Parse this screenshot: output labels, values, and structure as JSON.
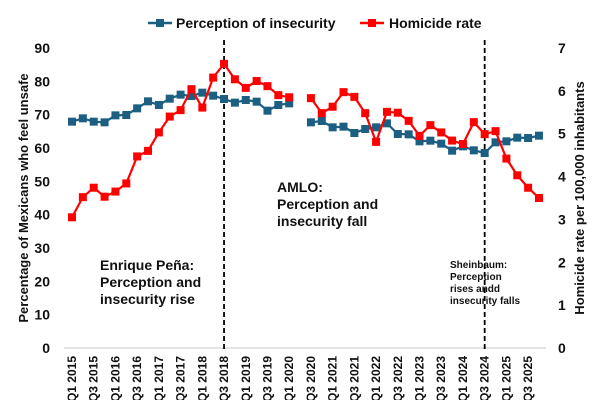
{
  "chart_data": {
    "type": "line",
    "title": "",
    "xlabel": "",
    "ylabel": "Percentage of Mexicans who feel unsafe",
    "ylabel_right": "Homicide rate per 100,000 inhabitants",
    "ylim": [
      0,
      90
    ],
    "ylim_right": [
      0,
      7
    ],
    "yticks": [
      0,
      10,
      20,
      30,
      40,
      50,
      60,
      70,
      80,
      90
    ],
    "yticks_right": [
      0,
      1,
      2,
      3,
      4,
      5,
      6,
      7
    ],
    "grid": false,
    "legend_position": "top-center",
    "x": [
      "Q1 2015",
      "Q2 2015",
      "Q3 2015",
      "Q4 2015",
      "Q1 2016",
      "Q2 2016",
      "Q3 2016",
      "Q4 2016",
      "Q1 2017",
      "Q2 2017",
      "Q3 2017",
      "Q4 2017",
      "Q1 2018",
      "Q2 2018",
      "Q3 2018",
      "Q4 2018",
      "Q1 2019",
      "Q2 2019",
      "Q3 2019",
      "Q4 2019",
      "Q1 2020",
      "Q2 2020",
      "Q3 2020",
      "Q4 2020",
      "Q1 2021",
      "Q2 2021",
      "Q3 2021",
      "Q4 2021",
      "Q1 2022",
      "Q2 2022",
      "Q3 2022",
      "Q4 2022",
      "Q1 2023",
      "Q2 2023",
      "Q3 2023",
      "Q4 2023",
      "Q1 2024",
      "Q2 2024",
      "Q3 2024",
      "Q4 2024",
      "Q1 2025",
      "Q2 2025",
      "Q3 2025",
      "Q4 2025"
    ],
    "xtick_labels": [
      "Q1 2015",
      "Q3 2015",
      "Q1 2016",
      "Q3 2016",
      "Q1 2017",
      "Q3 2017",
      "Q1 2018",
      "Q3 2018",
      "Q1 2019",
      "Q3 2019",
      "Q1 2020",
      "Q3 2020",
      "Q1 2021",
      "Q3 2021",
      "Q1 2022",
      "Q3 2022",
      "Q1 2023",
      "Q3 2023",
      "Q1 2024",
      "Q3 2024",
      "Q1 2025",
      "Q3 2025"
    ],
    "series": [
      {
        "name": "Perception of insecurity",
        "axis": "left",
        "color": "#1c5f82",
        "values": [
          67.9,
          68.9,
          67.9,
          67.7,
          69.8,
          69.9,
          71.9,
          74.0,
          72.9,
          74.8,
          76.0,
          75.6,
          76.6,
          75.7,
          74.7,
          73.6,
          74.4,
          73.9,
          71.2,
          72.9,
          73.4,
          null,
          67.7,
          68.1,
          66.2,
          66.4,
          64.5,
          65.7,
          66.2,
          67.4,
          64.2,
          64.1,
          62.0,
          62.2,
          61.3,
          59.2,
          60.5,
          59.3,
          58.5,
          61.7,
          62.0,
          63.1,
          63.0,
          63.7
        ]
      },
      {
        "name": "Homicide rate",
        "axis": "right",
        "color": "#ff0000",
        "values": [
          3.05,
          3.52,
          3.74,
          3.53,
          3.65,
          3.84,
          4.47,
          4.6,
          5.03,
          5.4,
          5.55,
          6.04,
          5.61,
          6.31,
          6.63,
          6.27,
          6.07,
          6.23,
          6.11,
          5.9,
          5.85,
          null,
          5.83,
          5.48,
          5.63,
          5.97,
          5.86,
          5.48,
          4.81,
          5.51,
          5.49,
          5.3,
          4.95,
          5.2,
          5.03,
          4.84,
          4.76,
          5.27,
          4.99,
          5.06,
          4.42,
          4.03,
          3.74,
          3.5
        ]
      }
    ],
    "vertical_lines": [
      "Q3 2018",
      "Q3 2024"
    ],
    "annotations": [
      {
        "id": "pena",
        "lines": [
          "Enrique Peña:",
          "Perception and",
          "insecurity rise"
        ]
      },
      {
        "id": "amlo",
        "lines": [
          "AMLO:",
          "Perception and",
          "insecurity fall"
        ]
      },
      {
        "id": "sheinbaum",
        "lines": [
          "Sheinbaum:",
          "Perception",
          "rises andd",
          "insecurity falls"
        ]
      }
    ]
  }
}
